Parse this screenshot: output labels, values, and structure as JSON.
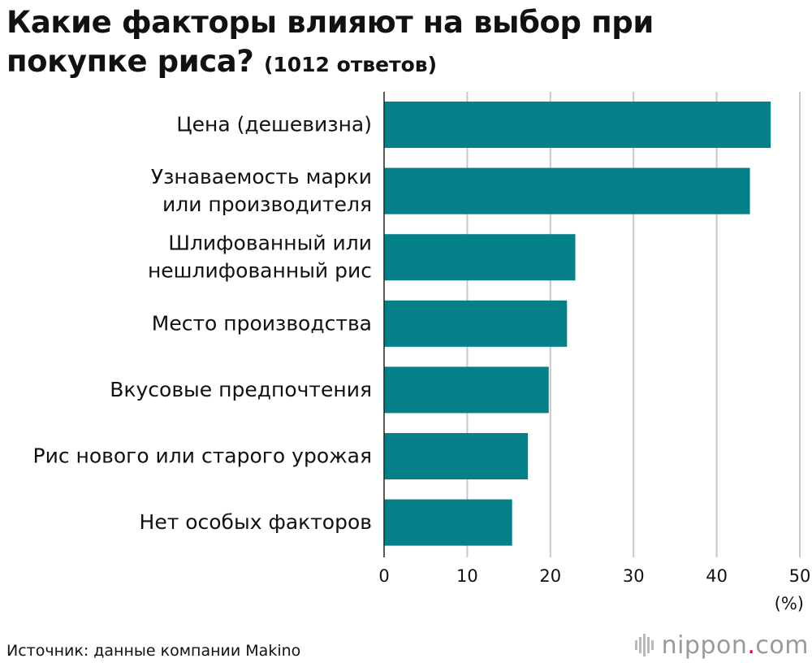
{
  "title": {
    "main": "Какие факторы влияют на выбор при покупке риса?",
    "sub": "(1012 ответов)"
  },
  "chart_data": {
    "type": "bar",
    "orientation": "horizontal",
    "categories": [
      [
        "Цена (дешевизна)"
      ],
      [
        "Узнаваемость марки",
        "или производителя"
      ],
      [
        "Шлифованный или",
        "нешлифованный рис"
      ],
      [
        "Место производства"
      ],
      [
        "Вкусовые предпочтения"
      ],
      [
        "Рис нового или старого урожая"
      ],
      [
        "Нет особых факторов"
      ]
    ],
    "values": [
      46.5,
      44.0,
      23.0,
      22.0,
      19.8,
      17.3,
      15.4
    ],
    "xlim": [
      0,
      50
    ],
    "xticks": [
      "0",
      "10",
      "20",
      "30",
      "40",
      "50"
    ],
    "xunit": "(%)",
    "grid": true,
    "bar_color": "#058089"
  },
  "footer": {
    "source": "Источник: данные компании Makino",
    "brand_name": "nippon",
    "brand_dot": ".",
    "brand_tld": "com",
    "brand_icon": "nippon-bars-icon"
  }
}
